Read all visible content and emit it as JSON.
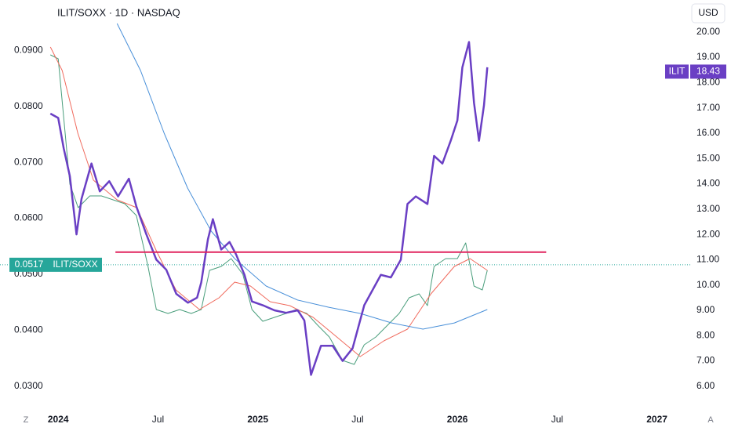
{
  "chart_data": {
    "type": "line",
    "title": "ILIT/SOXX · 1D · NASDAQ",
    "currency": "USD",
    "corner_left": "Z",
    "corner_right": "A",
    "xlim": [
      -3.5,
      38
    ],
    "xticks": [
      {
        "value": 0,
        "label": "2024"
      },
      {
        "value": 6,
        "label": "Jul"
      },
      {
        "value": 12,
        "label": "2025"
      },
      {
        "value": 18,
        "label": "Jul"
      },
      {
        "value": 24,
        "label": "2026"
      },
      {
        "value": 30,
        "label": "Jul"
      },
      {
        "value": 36,
        "label": "2027"
      }
    ],
    "ylim": [
      0.0262,
      0.099
    ],
    "yticks": [
      {
        "value": 0.03,
        "label": "0.0300"
      },
      {
        "value": 0.04,
        "label": "0.0400"
      },
      {
        "value": 0.05,
        "label": "0.0500"
      },
      {
        "value": 0.06,
        "label": "0.0600"
      },
      {
        "value": 0.07,
        "label": "0.0700"
      },
      {
        "value": 0.08,
        "label": "0.0800"
      },
      {
        "value": 0.09,
        "label": "0.0900"
      }
    ],
    "y2lim": [
      5.16,
      21.26
    ],
    "y2ticks": [
      {
        "value": 6,
        "label": "6.00"
      },
      {
        "value": 7,
        "label": "7.00"
      },
      {
        "value": 8,
        "label": "8.00"
      },
      {
        "value": 9,
        "label": "9.00"
      },
      {
        "value": 10,
        "label": "10.00"
      },
      {
        "value": 11,
        "label": "11.00"
      },
      {
        "value": 12,
        "label": "12.00"
      },
      {
        "value": 13,
        "label": "13.00"
      },
      {
        "value": 14,
        "label": "14.00"
      },
      {
        "value": 15,
        "label": "15.00"
      },
      {
        "value": 16,
        "label": "16.00"
      },
      {
        "value": 17,
        "label": "17.00"
      },
      {
        "value": 18,
        "label": "18.00"
      },
      {
        "value": 19,
        "label": "19.00"
      },
      {
        "value": 20,
        "label": "20.00"
      }
    ],
    "series": [
      {
        "name": "ILIT/SOXX",
        "color": "#4a9e7c",
        "width": 1,
        "x": [
          -0.47,
          0,
          0.33,
          0.7,
          1.2,
          1.9,
          2.6,
          3.3,
          4.0,
          4.7,
          5.4,
          5.9,
          6.6,
          7.3,
          8.0,
          8.6,
          9.1,
          9.8,
          10.4,
          11.1,
          11.65,
          12.3,
          13.0,
          13.7,
          14.3,
          14.95,
          15.6,
          16.3,
          17.1,
          17.8,
          18.4,
          19.1,
          19.8,
          20.5,
          21.1,
          21.7,
          22.2,
          22.6,
          23.3,
          24.0,
          24.5,
          25.0,
          25.5,
          25.8
        ],
        "values": [
          0.0892,
          0.0885,
          0.078,
          0.0661,
          0.0619,
          0.064,
          0.064,
          0.0633,
          0.0626,
          0.0605,
          0.0514,
          0.0437,
          0.043,
          0.0437,
          0.043,
          0.0437,
          0.0507,
          0.0514,
          0.0528,
          0.05,
          0.0437,
          0.0416,
          0.0423,
          0.043,
          0.0437,
          0.043,
          0.0409,
          0.0388,
          0.0346,
          0.0339,
          0.0374,
          0.0388,
          0.0409,
          0.043,
          0.0458,
          0.0465,
          0.0444,
          0.0514,
          0.0528,
          0.0528,
          0.0556,
          0.0479,
          0.0472,
          0.0507
        ]
      },
      {
        "color": "#f06b5e",
        "width": 1,
        "x": [
          -0.47,
          0.24,
          1.18,
          2.12,
          3.54,
          4.72,
          5.9,
          7.08,
          8.49,
          9.67,
          10.61,
          11.56,
          12.74,
          13.92,
          15.33,
          16.75,
          18.16,
          19.58,
          21.0,
          22.41,
          23.82,
          24.76,
          25.8
        ],
        "values": [
          0.0906,
          0.0864,
          0.0752,
          0.0668,
          0.0633,
          0.0619,
          0.0542,
          0.0472,
          0.0437,
          0.0458,
          0.0486,
          0.0479,
          0.0451,
          0.0444,
          0.0423,
          0.0388,
          0.0353,
          0.0381,
          0.0402,
          0.0465,
          0.0514,
          0.0528,
          0.0507
        ]
      },
      {
        "color": "#4a90d9",
        "width": 1,
        "x": [
          3.54,
          4.95,
          6.37,
          7.78,
          9.2,
          10.61,
          12.5,
          14.39,
          16.27,
          18.16,
          20.05,
          21.93,
          23.82,
          25.8
        ],
        "values": [
          0.0948,
          0.0864,
          0.0752,
          0.0654,
          0.0577,
          0.0528,
          0.0479,
          0.0454,
          0.0441,
          0.043,
          0.0413,
          0.0402,
          0.0413,
          0.0437
        ]
      },
      {
        "name": "ILIT",
        "color": "#6a3fc4",
        "width": 2.5,
        "axis": "y2",
        "x": [
          -0.47,
          0,
          0.33,
          0.7,
          1.1,
          1.4,
          2.0,
          2.5,
          3.07,
          3.6,
          4.25,
          4.7,
          5.3,
          5.9,
          6.5,
          7.1,
          7.8,
          8.35,
          8.6,
          9.0,
          9.3,
          9.8,
          10.3,
          10.7,
          11.2,
          11.65,
          12.3,
          13.0,
          13.7,
          14.4,
          14.8,
          15.2,
          15.8,
          16.5,
          17.1,
          17.7,
          18.4,
          18.9,
          19.4,
          20.0,
          20.6,
          21.0,
          21.5,
          22.2,
          22.6,
          23.1,
          23.6,
          24.0,
          24.3,
          24.7,
          25.0,
          25.3,
          25.6,
          25.8
        ],
        "values": [
          16.77,
          16.6,
          15.4,
          14.3,
          12.0,
          13.4,
          14.8,
          13.7,
          14.1,
          13.5,
          14.2,
          13.1,
          12.0,
          11.0,
          10.6,
          9.65,
          9.3,
          9.5,
          10.1,
          11.8,
          12.6,
          11.4,
          11.7,
          11.2,
          10.4,
          9.35,
          9.2,
          9.0,
          8.9,
          9.0,
          8.6,
          6.45,
          7.6,
          7.6,
          7.0,
          7.5,
          9.2,
          9.8,
          10.4,
          10.3,
          11.0,
          13.2,
          13.5,
          13.2,
          15.1,
          14.8,
          15.7,
          16.5,
          18.6,
          19.6,
          17.2,
          15.7,
          17.1,
          18.6
        ]
      }
    ],
    "hline": {
      "value": 11.3,
      "color": "#e0245e",
      "axis": "y2",
      "x": [
        3.44,
        29.34
      ]
    },
    "ratio_last": 0.0517,
    "price_last": 18.43
  }
}
